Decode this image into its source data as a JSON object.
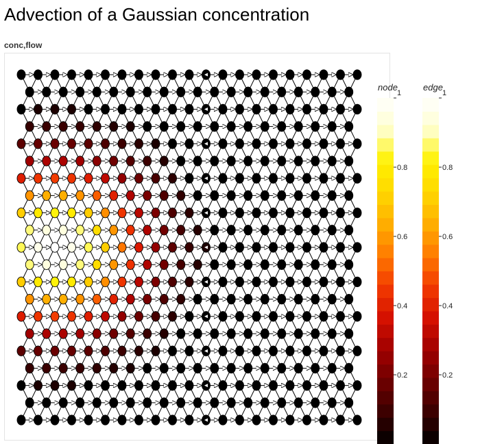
{
  "page": {
    "title": "Advection of a Gaussian concentration",
    "plot_label": "conc,flow"
  },
  "chart_data": {
    "type": "scatter",
    "description_kind": "hexagonal mesh graph with colored nodes and directed edges",
    "grid": {
      "rows": 21,
      "cols": 21
    },
    "node_color_field": "concentration",
    "gaussian": {
      "center_row": 10,
      "center_col": 2,
      "sigma_rows": 3.2,
      "sigma_cols": 3.6,
      "peak": 1.0
    },
    "colormap": [
      "#000000",
      "#3a0000",
      "#6e0000",
      "#a00000",
      "#d41000",
      "#f23a00",
      "#ff7a00",
      "#ffae00",
      "#ffd700",
      "#fff200",
      "#ffffcc",
      "#ffffff"
    ],
    "colorbars": [
      {
        "title": "node",
        "ticks": [
          0.2,
          0.4,
          0.6,
          0.8,
          1
        ],
        "tick_labels": [
          "0.2",
          "0.4",
          "0.6",
          "0.8",
          "1"
        ],
        "range": [
          0,
          1
        ]
      },
      {
        "title": "edge",
        "ticks": [
          0.2,
          0.4,
          0.6,
          0.8,
          1
        ],
        "tick_labels": [
          "0.2",
          "0.4",
          "0.6",
          "0.8",
          "1"
        ],
        "range": [
          0,
          1
        ]
      }
    ],
    "edge_color": "#000000",
    "flow_direction": "right",
    "sink_column": 11
  }
}
